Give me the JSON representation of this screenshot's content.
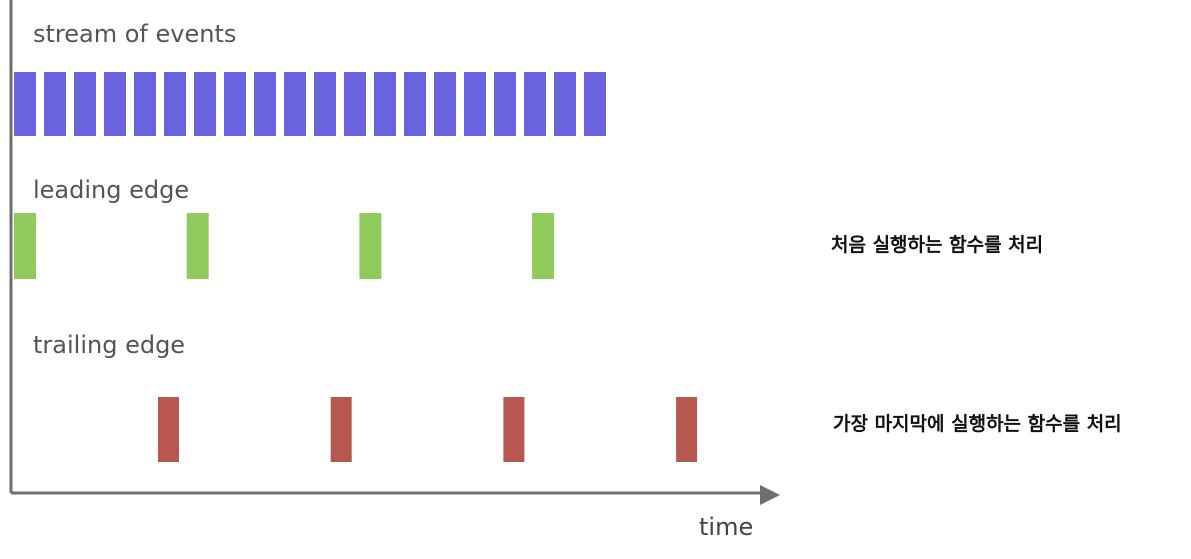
{
  "colors": {
    "events": "#6a63e0",
    "leading": "#8fca5d",
    "trailing": "#b8574e",
    "axis": "#6f6f6f"
  },
  "rows": [
    {
      "id": "events",
      "label": "stream of events",
      "bars": 20
    },
    {
      "id": "leading",
      "label": "leading edge",
      "bars": 4
    },
    {
      "id": "trailing",
      "label": "trailing edge",
      "bars": 4
    }
  ],
  "axis": {
    "x_label": "time"
  },
  "notes": {
    "leading": "처음 실행하는 함수를 처리",
    "trailing": "가장 마지막에 실행하는 함수를 처리"
  }
}
